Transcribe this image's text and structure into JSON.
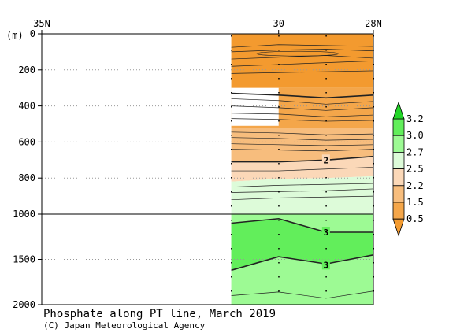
{
  "chart_data": {
    "type": "heatmap",
    "title": "Phosphate along PT line, March 2019",
    "credit": "(C) Japan Meteorological Agency",
    "y_unit_label": "(m)",
    "x_ticks": [
      {
        "lat": 35,
        "label": "35N"
      },
      {
        "lat": 30,
        "label": "30"
      },
      {
        "lat": 28,
        "label": "28N"
      }
    ],
    "y_ticks": [
      {
        "depth": 0,
        "label": "0"
      },
      {
        "depth": 200,
        "label": "200"
      },
      {
        "depth": 400,
        "label": "400"
      },
      {
        "depth": 600,
        "label": "600"
      },
      {
        "depth": 800,
        "label": "800"
      },
      {
        "depth": 1000,
        "label": "1000"
      },
      {
        "depth": 1500,
        "label": "1500"
      },
      {
        "depth": 2000,
        "label": "2000"
      }
    ],
    "xlim": [
      35,
      28
    ],
    "ylim": [
      0,
      2000
    ],
    "y_axis_break_depth": 1000,
    "data_lat_range": [
      31,
      28
    ],
    "station_lats": [
      31,
      30,
      29,
      28
    ],
    "colorbar": {
      "levels": [
        "0.5",
        "1.5",
        "2.2",
        "2.5",
        "2.7",
        "3.0",
        "3.2"
      ],
      "colors": [
        "#f39a2f",
        "#f4a64a",
        "#f7bd7d",
        "#fbd8b8",
        "#ddfbd9",
        "#9dfa94",
        "#62ee5b",
        "#23d628"
      ]
    },
    "contour_labels": [
      {
        "value": "2",
        "lat": 29,
        "depth": 700
      },
      {
        "value": "3",
        "lat": 29,
        "depth": 1200
      },
      {
        "value": "3",
        "lat": 29,
        "depth": 1560
      }
    ],
    "missing_region": {
      "lat": [
        31,
        30
      ],
      "depth": [
        300,
        510
      ]
    }
  }
}
